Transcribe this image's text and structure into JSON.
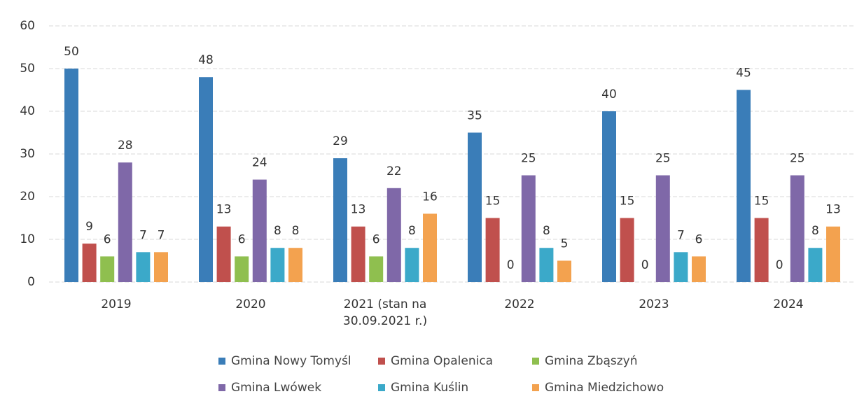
{
  "chart_data": {
    "type": "bar",
    "categories": [
      "2019",
      "2020",
      "2021 (stan na 30.09.2021 r.)",
      "2022",
      "2023",
      "2024"
    ],
    "series": [
      {
        "name": "Gmina Nowy Tomyśl",
        "color": "#3a7db8",
        "values": [
          50,
          48,
          29,
          35,
          40,
          45
        ]
      },
      {
        "name": "Gmina Opalenica",
        "color": "#c0504d",
        "values": [
          9,
          13,
          13,
          15,
          15,
          15
        ]
      },
      {
        "name": "Gmina Zbąszyń",
        "color": "#8fbf4f",
        "values": [
          6,
          6,
          6,
          0,
          0,
          0
        ]
      },
      {
        "name": "Gmina Lwówek",
        "color": "#7f68a8",
        "values": [
          28,
          24,
          22,
          25,
          25,
          25
        ]
      },
      {
        "name": "Gmina Kuślin",
        "color": "#3ba9c9",
        "values": [
          7,
          8,
          8,
          8,
          7,
          8
        ]
      },
      {
        "name": "Gmina Miedzichowo",
        "color": "#f3a24f",
        "values": [
          7,
          8,
          16,
          5,
          6,
          13
        ]
      }
    ],
    "ylim": [
      0,
      60
    ],
    "yticks": [
      0,
      10,
      20,
      30,
      40,
      50,
      60
    ],
    "grid": true
  }
}
